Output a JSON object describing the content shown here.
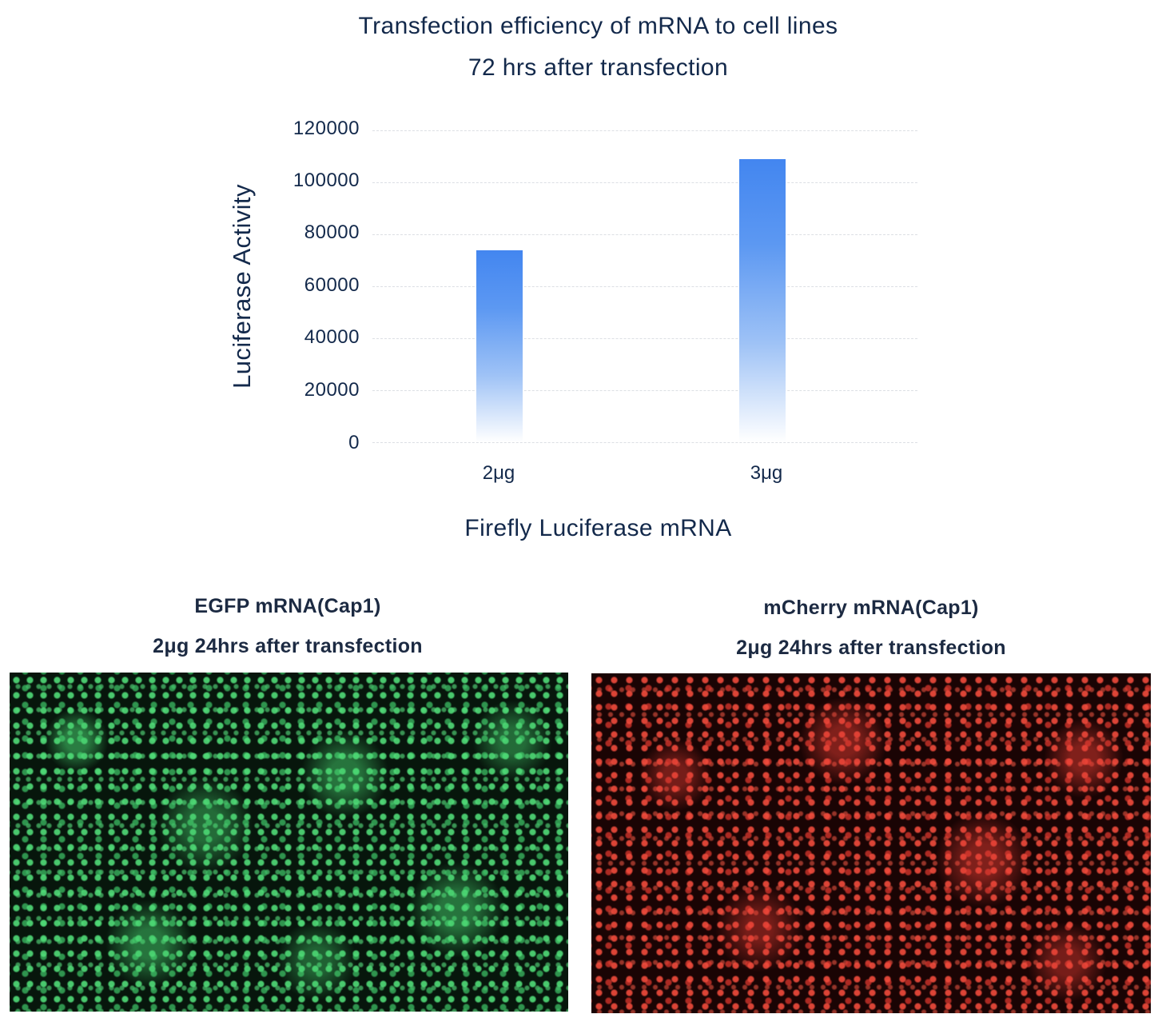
{
  "chart": {
    "title_line1": "Transfection efficiency of mRNA to cell lines",
    "title_line2": "72 hrs after transfection",
    "ylabel": "Luciferase Activity",
    "xlabel": "Firefly Luciferase mRNA",
    "yticks": [
      "120000",
      "100000",
      "80000",
      "60000",
      "40000",
      "20000",
      "0"
    ],
    "categories": [
      "2μg",
      "3μg"
    ],
    "bar_color": "#4386f0"
  },
  "chart_data": {
    "type": "bar",
    "title": "Transfection efficiency of mRNA to cell lines 72 hrs after transfection",
    "categories": [
      "2μg",
      "3μg"
    ],
    "values": [
      74000,
      109000
    ],
    "xlabel": "Firefly Luciferase mRNA",
    "ylabel": "Luciferase Activity",
    "ylim": [
      0,
      120000
    ],
    "yticks": [
      0,
      20000,
      40000,
      60000,
      80000,
      100000,
      120000
    ],
    "grid": true,
    "legend": null
  },
  "panels": [
    {
      "caption_line1": "EGFP mRNA(Cap1)",
      "caption_line2": "2μg 24hrs after transfection",
      "image": "green-fluorescence-micrograph"
    },
    {
      "caption_line1": "mCherry mRNA(Cap1)",
      "caption_line2": "2μg 24hrs after transfection",
      "image": "red-fluorescence-micrograph"
    }
  ]
}
